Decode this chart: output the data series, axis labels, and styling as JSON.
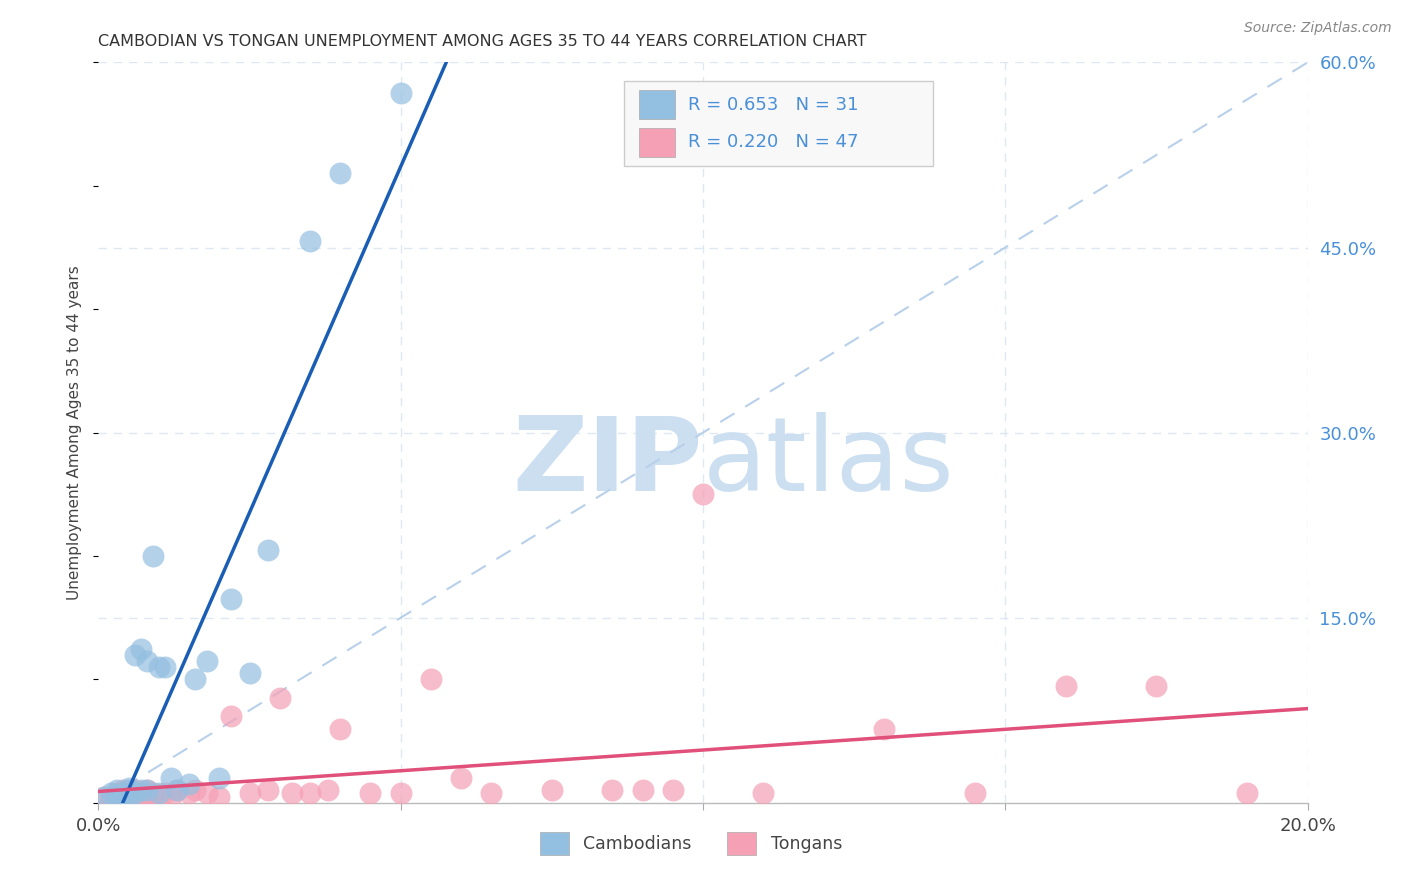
{
  "title": "CAMBODIAN VS TONGAN UNEMPLOYMENT AMONG AGES 35 TO 44 YEARS CORRELATION CHART",
  "source": "Source: ZipAtlas.com",
  "ylabel": "Unemployment Among Ages 35 to 44 years",
  "xlim": [
    0,
    0.2
  ],
  "ylim": [
    0,
    0.6
  ],
  "cambodian_R": 0.653,
  "cambodian_N": 31,
  "tongan_R": 0.22,
  "tongan_N": 47,
  "cambodian_color": "#93bfe0",
  "tongan_color": "#f5a0b5",
  "cambodian_line_color": "#1a5db5",
  "tongan_line_color": "#e0507a",
  "dashed_line_color": "#b8d0ea",
  "cambodian_scatter_x": [
    0.001,
    0.002,
    0.003,
    0.003,
    0.004,
    0.004,
    0.005,
    0.005,
    0.005,
    0.006,
    0.006,
    0.007,
    0.007,
    0.008,
    0.008,
    0.009,
    0.01,
    0.01,
    0.011,
    0.012,
    0.013,
    0.015,
    0.016,
    0.018,
    0.02,
    0.022,
    0.025,
    0.028,
    0.035,
    0.04,
    0.05
  ],
  "cambodian_scatter_y": [
    0.005,
    0.008,
    0.005,
    0.01,
    0.005,
    0.008,
    0.005,
    0.01,
    0.012,
    0.008,
    0.12,
    0.01,
    0.125,
    0.01,
    0.115,
    0.2,
    0.008,
    0.11,
    0.11,
    0.02,
    0.01,
    0.015,
    0.1,
    0.115,
    0.02,
    0.165,
    0.105,
    0.205,
    0.455,
    0.51,
    0.575
  ],
  "tongan_scatter_x": [
    0.001,
    0.002,
    0.003,
    0.003,
    0.004,
    0.004,
    0.005,
    0.005,
    0.006,
    0.006,
    0.007,
    0.007,
    0.008,
    0.008,
    0.009,
    0.01,
    0.011,
    0.012,
    0.013,
    0.015,
    0.016,
    0.018,
    0.02,
    0.022,
    0.025,
    0.028,
    0.03,
    0.032,
    0.035,
    0.038,
    0.04,
    0.045,
    0.05,
    0.055,
    0.06,
    0.065,
    0.075,
    0.085,
    0.09,
    0.095,
    0.1,
    0.11,
    0.13,
    0.145,
    0.16,
    0.175,
    0.19
  ],
  "tongan_scatter_y": [
    0.005,
    0.005,
    0.005,
    0.008,
    0.005,
    0.01,
    0.005,
    0.008,
    0.005,
    0.01,
    0.005,
    0.008,
    0.005,
    0.01,
    0.008,
    0.005,
    0.008,
    0.005,
    0.01,
    0.008,
    0.01,
    0.008,
    0.005,
    0.07,
    0.008,
    0.01,
    0.085,
    0.008,
    0.008,
    0.01,
    0.06,
    0.008,
    0.008,
    0.1,
    0.02,
    0.008,
    0.01,
    0.01,
    0.01,
    0.01,
    0.25,
    0.008,
    0.06,
    0.008,
    0.095,
    0.095,
    0.008
  ],
  "watermark_zip": "ZIP",
  "watermark_atlas": "atlas",
  "watermark_color": "#ccdff0",
  "background_color": "#ffffff",
  "grid_color": "#dde8f2"
}
